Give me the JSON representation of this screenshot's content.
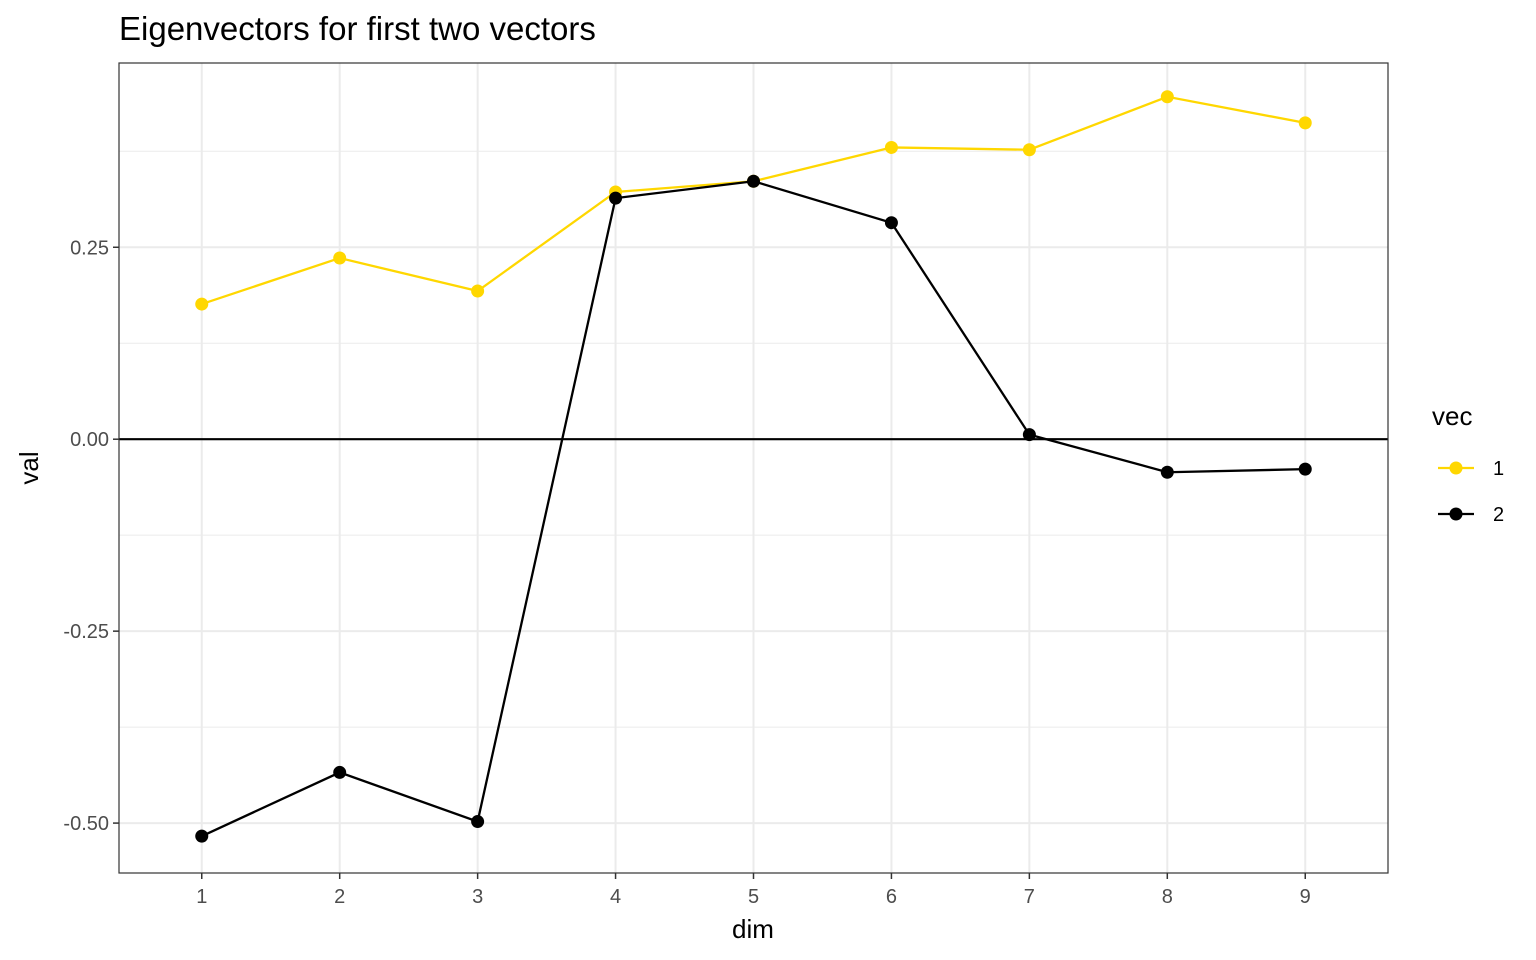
{
  "chart_data": {
    "type": "line",
    "title": "Eigenvectors for first two vectors",
    "xlabel": "dim",
    "ylabel": "val",
    "x": [
      1,
      2,
      3,
      4,
      5,
      6,
      7,
      8,
      9
    ],
    "x_ticks": [
      "1",
      "2",
      "3",
      "4",
      "5",
      "6",
      "7",
      "8",
      "9"
    ],
    "y_ticks": [
      {
        "value": -0.5,
        "label": "-0.50"
      },
      {
        "value": -0.25,
        "label": "-0.25"
      },
      {
        "value": 0.0,
        "label": "0.00"
      },
      {
        "value": 0.25,
        "label": "0.25"
      }
    ],
    "xlim": [
      0.4,
      9.6
    ],
    "ylim": [
      -0.565,
      0.49
    ],
    "grid": true,
    "hline": 0,
    "legend": {
      "title": "vec",
      "position": "right"
    },
    "series": [
      {
        "name": "1",
        "color": "#FFD700",
        "values": [
          0.176,
          0.236,
          0.193,
          0.322,
          0.336,
          0.38,
          0.377,
          0.446,
          0.412
        ]
      },
      {
        "name": "2",
        "color": "#000000",
        "values": [
          -0.517,
          -0.434,
          -0.498,
          0.314,
          0.336,
          0.282,
          0.006,
          -0.043,
          -0.039
        ]
      }
    ]
  }
}
